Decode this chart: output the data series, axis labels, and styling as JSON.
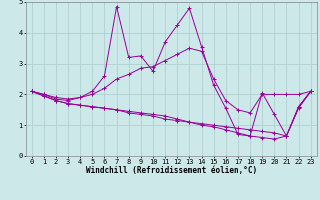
{
  "xlabel": "Windchill (Refroidissement éolien,°C)",
  "bg_color": "#cce8e8",
  "grid_color": "#aacccc",
  "line_color": "#990099",
  "xlim": [
    -0.5,
    23.5
  ],
  "ylim": [
    0,
    5
  ],
  "xticks": [
    0,
    1,
    2,
    3,
    4,
    5,
    6,
    7,
    8,
    9,
    10,
    11,
    12,
    13,
    14,
    15,
    16,
    17,
    18,
    19,
    20,
    21,
    22,
    23
  ],
  "yticks": [
    0,
    1,
    2,
    3,
    4,
    5
  ],
  "series": [
    [
      2.1,
      2.0,
      1.9,
      1.85,
      1.9,
      2.1,
      2.6,
      4.85,
      3.2,
      3.25,
      2.75,
      3.7,
      4.25,
      4.8,
      3.55,
      2.3,
      1.55,
      0.7,
      0.65,
      2.05,
      1.35,
      0.65,
      1.6,
      2.1
    ],
    [
      2.1,
      2.0,
      1.85,
      1.8,
      1.9,
      2.0,
      2.2,
      2.5,
      2.65,
      2.85,
      2.9,
      3.1,
      3.3,
      3.5,
      3.4,
      2.5,
      1.8,
      1.5,
      1.4,
      2.0,
      2.0,
      2.0,
      2.0,
      2.1
    ],
    [
      2.1,
      1.95,
      1.8,
      1.7,
      1.65,
      1.6,
      1.55,
      1.5,
      1.4,
      1.35,
      1.3,
      1.2,
      1.15,
      1.1,
      1.05,
      1.0,
      0.95,
      0.9,
      0.85,
      0.8,
      0.75,
      0.65,
      1.55,
      2.1
    ],
    [
      2.1,
      1.95,
      1.8,
      1.7,
      1.65,
      1.6,
      1.55,
      1.5,
      1.45,
      1.4,
      1.35,
      1.3,
      1.2,
      1.1,
      1.0,
      0.95,
      0.85,
      0.75,
      0.65,
      0.6,
      0.55,
      0.65,
      1.6,
      2.1
    ]
  ],
  "label_fontsize": 5.5,
  "tick_fontsize": 5.0
}
